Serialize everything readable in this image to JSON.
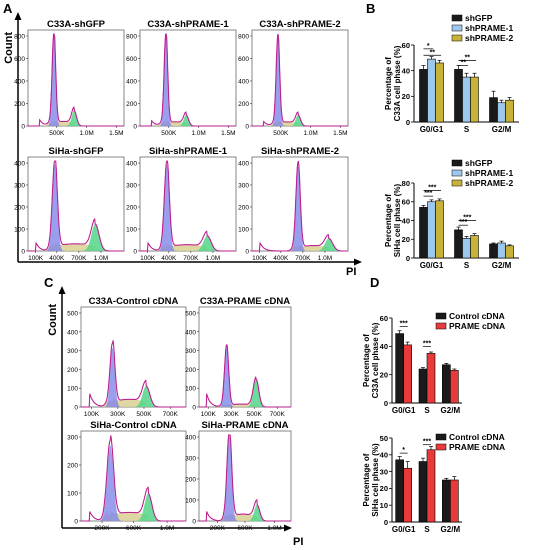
{
  "panel_letters": [
    "A",
    "B",
    "C",
    "D"
  ],
  "colors": {
    "shGFP": "#1a1a1a",
    "shPRAME1": "#9dc8ee",
    "shPRAME2": "#c9b23a",
    "control": "#1a1a1a",
    "prame": "#e83a3a",
    "hist_line": "#d0169a",
    "g1_fill": "#7f86e8",
    "s_fill": "#d8d092",
    "g2_fill": "#54d68a"
  },
  "flow_A": {
    "axis_title": "PI",
    "y_label": "Count",
    "top_ticks_y": [
      "0",
      "200",
      "400",
      "600",
      "800"
    ],
    "top_ticks_x": [
      "500K",
      "1.0M",
      "1.5M"
    ],
    "bottom_ticks_y": [
      "0",
      "100",
      "200",
      "300",
      "400"
    ],
    "bottom_ticks_x": [
      "100K",
      "400K",
      "700K",
      "1.0M"
    ],
    "top_titles": [
      "C33A-shGFP",
      "C33A-shPRAME-1",
      "C33A-shPRAME-2"
    ],
    "bottom_titles": [
      "SiHa-shGFP",
      "SiHa-shPRAME-1",
      "SiHa-shPRAME-2"
    ]
  },
  "flow_C": {
    "axis_title": "PI",
    "y_label": "Count",
    "ticks_y": [
      "0",
      "100",
      "200",
      "300",
      "400",
      "500"
    ],
    "top_ticks_x": [
      "100K",
      "300K",
      "500K",
      "700K"
    ],
    "bottom_ticks_x": [
      "200K",
      "600K",
      "1.0M"
    ],
    "top_titles": [
      "C33A-Control cDNA",
      "C33A-PRAME cDNA"
    ],
    "bottom_titles": [
      "SiHa-Control cDNA",
      "SiHa-PRAME cDNA"
    ]
  },
  "chart_data": [
    {
      "type": "bar",
      "panel": "B",
      "ylabel": "Percentage of\nC33A cell phase (%)",
      "categories": [
        "G0/G1",
        "S",
        "G2/M"
      ],
      "ylim": [
        0,
        60
      ],
      "yticks": [
        "0",
        "20",
        "40",
        "60"
      ],
      "series": [
        {
          "name": "shGFP",
          "values": [
            41,
            41,
            19
          ]
        },
        {
          "name": "shPRAME-1",
          "values": [
            49,
            35,
            15
          ]
        },
        {
          "name": "shPRAME-2",
          "values": [
            46,
            35,
            17
          ]
        }
      ],
      "significance": [
        "*",
        "**",
        "**",
        "**"
      ],
      "legend": "top-right"
    },
    {
      "type": "bar",
      "panel": "B",
      "ylabel": "Percentage of\nSiHa cell phase (%)",
      "categories": [
        "G0/G1",
        "S",
        "G2/M"
      ],
      "ylim": [
        0,
        80
      ],
      "yticks": [
        "0",
        "20",
        "40",
        "60",
        "80"
      ],
      "series": [
        {
          "name": "shGFP",
          "values": [
            54,
            30,
            15
          ]
        },
        {
          "name": "shPRAME-1",
          "values": [
            60,
            21,
            16
          ]
        },
        {
          "name": "shPRAME-2",
          "values": [
            61,
            24,
            13
          ]
        }
      ],
      "significance": [
        "***",
        "***",
        "***",
        "***"
      ],
      "legend": "top-right"
    },
    {
      "type": "bar",
      "panel": "D",
      "ylabel": "Percentage of\nC33A cell phase (%)",
      "categories": [
        "G0/G1",
        "S",
        "G2/M"
      ],
      "ylim": [
        0,
        60
      ],
      "yticks": [
        "0",
        "20",
        "40",
        "60"
      ],
      "series": [
        {
          "name": "Control cDNA",
          "values": [
            49,
            24,
            27
          ]
        },
        {
          "name": "PRAME cDNA",
          "values": [
            41,
            35,
            23
          ]
        }
      ],
      "significance": [
        "***",
        "***"
      ],
      "legend": "top-right"
    },
    {
      "type": "bar",
      "panel": "D",
      "ylabel": "Percentage of\nSiHa cell phase (%)",
      "categories": [
        "G0/G1",
        "S",
        "G2/M"
      ],
      "ylim": [
        0,
        50
      ],
      "yticks": [
        "0",
        "10",
        "20",
        "30",
        "40",
        "50"
      ],
      "series": [
        {
          "name": "Control cDNA",
          "values": [
            37,
            36,
            25
          ]
        },
        {
          "name": "PRAME cDNA",
          "values": [
            32,
            43,
            25
          ]
        }
      ],
      "significance": [
        "*",
        "***"
      ],
      "legend": "top-right"
    }
  ]
}
